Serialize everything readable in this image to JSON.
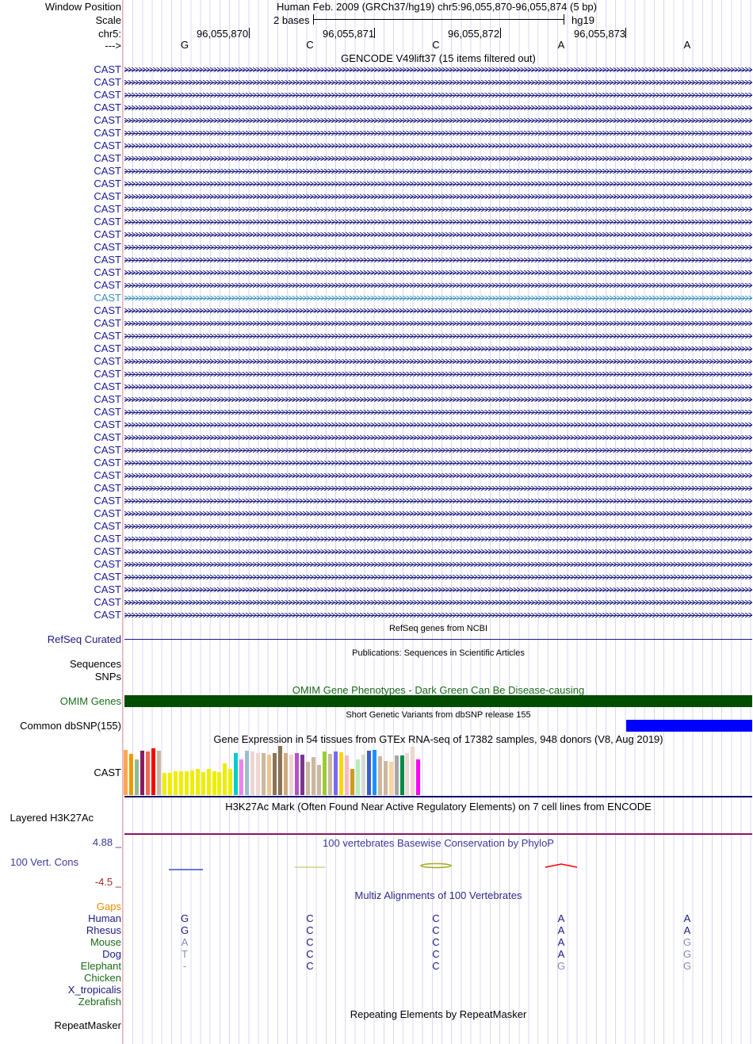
{
  "header": {
    "window_position_label": "Window Position",
    "window_position": "Human Feb. 2009 (GRCh37/hg19)   chr5:96,055,870-96,055,874 (5 bp)",
    "scale_label": "Scale",
    "scale_value": "2 bases",
    "scale_assembly": "hg19",
    "chrom_label": "chr5:",
    "coords": [
      "96,055,870",
      "96,055,871",
      "96,055,872",
      "96,055,873"
    ],
    "strand_label": "--->",
    "bases": [
      "G",
      "C",
      "C",
      "A",
      "A"
    ]
  },
  "gencode": {
    "title": "GENCODE V49lift37 (15 items filtered out)",
    "rows": [
      {
        "label": "CAST"
      },
      {
        "label": "CAST"
      },
      {
        "label": "CAST"
      },
      {
        "label": "CAST"
      },
      {
        "label": "CAST"
      },
      {
        "label": "CAST"
      },
      {
        "label": "CAST"
      },
      {
        "label": "CAST"
      },
      {
        "label": "CAST"
      },
      {
        "label": "CAST"
      },
      {
        "label": "CAST"
      },
      {
        "label": "CAST"
      },
      {
        "label": "CAST"
      },
      {
        "label": "CAST"
      },
      {
        "label": "CAST"
      },
      {
        "label": "CAST"
      },
      {
        "label": "CAST"
      },
      {
        "label": "CAST"
      },
      {
        "label": "CAST",
        "highlight": true
      },
      {
        "label": "CAST"
      },
      {
        "label": "CAST"
      },
      {
        "label": "CAST"
      },
      {
        "label": "CAST"
      },
      {
        "label": "CAST"
      },
      {
        "label": "CAST"
      },
      {
        "label": "CAST"
      },
      {
        "label": "CAST"
      },
      {
        "label": "CAST"
      },
      {
        "label": "CAST"
      },
      {
        "label": "CAST"
      },
      {
        "label": "CAST"
      },
      {
        "label": "CAST"
      },
      {
        "label": "CAST"
      },
      {
        "label": "CAST"
      },
      {
        "label": "CAST"
      },
      {
        "label": "CAST"
      },
      {
        "label": "CAST"
      },
      {
        "label": "CAST"
      },
      {
        "label": "CAST"
      },
      {
        "label": "CAST"
      },
      {
        "label": "CAST"
      },
      {
        "label": "CAST"
      },
      {
        "label": "CAST"
      },
      {
        "label": "CAST"
      }
    ]
  },
  "refseq": {
    "title": "RefSeq genes from NCBI",
    "label": "RefSeq Curated"
  },
  "publications": {
    "title": "Publications: Sequences in Scientific Articles",
    "label_1": "Sequences",
    "label_2": "SNPs"
  },
  "omim": {
    "title": "OMIM Gene Phenotypes - Dark Green Can Be Disease-causing",
    "label": "OMIM Genes",
    "color": "#004d00"
  },
  "dbsnp": {
    "title": "Short Genetic Variants from dbSNP release 155",
    "label": "Common dbSNP(155)",
    "color": "#0000ff"
  },
  "gtex": {
    "title": "Gene Expression in 54 tissues from GTEx RNA-seq of 17382 samples, 948 donors (V8, Aug 2019)",
    "label": "CAST",
    "relative_values": [
      0.92,
      0.84,
      0.73,
      0.91,
      0.89,
      0.95,
      0.91,
      0.45,
      0.45,
      0.49,
      0.49,
      0.48,
      0.5,
      0.54,
      0.47,
      0.54,
      0.48,
      0.47,
      0.65,
      0.54,
      0.86,
      0.73,
      0.91,
      0.89,
      0.86,
      0.86,
      0.83,
      0.86,
      1.0,
      0.86,
      0.83,
      0.86,
      0.83,
      0.67,
      0.77,
      0.61,
      0.89,
      0.84,
      0.89,
      0.87,
      0.81,
      0.53,
      0.73,
      0.83,
      0.91,
      0.92,
      0.79,
      0.7,
      0.68,
      0.81,
      0.81,
      0.86,
      0.98,
      0.72
    ],
    "colors": [
      "#ffa54f",
      "#ee9a00",
      "#8fbc8f",
      "#8b1c62",
      "#ee6a50",
      "#ff0000",
      "#cdb79e",
      "#eeee00",
      "#eeee00",
      "#eeee00",
      "#eeee00",
      "#eeee00",
      "#eeee00",
      "#eeee00",
      "#eeee00",
      "#eeee00",
      "#eeee00",
      "#eeee00",
      "#eeee00",
      "#eeee00",
      "#00cdcd",
      "#ee82ee",
      "#9ac0cd",
      "#eed5d2",
      "#eed5d2",
      "#cdb79e",
      "#eec591",
      "#8b7355",
      "#8b7355",
      "#cdaa7d",
      "#eed5d2",
      "#b452cd",
      "#7a378b",
      "#cdb79e",
      "#cdb79e",
      "#cdb79e",
      "#9acd32",
      "#cdb79e",
      "#7b68ee",
      "#ffd700",
      "#ffb6c1",
      "#cd9b1d",
      "#b4eeb4",
      "#d9d9d9",
      "#3a5fcd",
      "#1e90ff",
      "#cdb79e",
      "#cdb79e",
      "#ffd39b",
      "#a6a6a6",
      "#008b45",
      "#eed5d2",
      "#eed5d2",
      "#ff00ff"
    ]
  },
  "h3k27ac": {
    "title": "H3K27Ac Mark (Often Found Near Active Regulatory Elements) on 7 cell lines from ENCODE",
    "label": "Layered H3K27Ac"
  },
  "phylop": {
    "title": "100 vertebrates Basewise Conservation by PhyloP",
    "label": "100 Vert. Cons",
    "max": "4.88 _",
    "min": "-4.5 _"
  },
  "multiz": {
    "title": "Multiz Alignments of 100 Vertebrates",
    "gaps_label": "Gaps",
    "species": [
      {
        "name": "Human",
        "color": "navy",
        "bases": [
          "G",
          "C",
          "C",
          "A",
          "A"
        ],
        "match": [
          1,
          1,
          1,
          1,
          1
        ]
      },
      {
        "name": "Rhesus",
        "color": "navy",
        "bases": [
          "G",
          "C",
          "C",
          "A",
          "A"
        ],
        "match": [
          1,
          1,
          1,
          1,
          1
        ]
      },
      {
        "name": "Mouse",
        "color": "green",
        "bases": [
          "A",
          "C",
          "C",
          "A",
          "G"
        ],
        "match": [
          0,
          1,
          1,
          1,
          0
        ]
      },
      {
        "name": "Dog",
        "color": "navy",
        "bases": [
          "T",
          "C",
          "C",
          "A",
          "G"
        ],
        "match": [
          0,
          1,
          1,
          1,
          0
        ]
      },
      {
        "name": "Elephant",
        "color": "green",
        "bases": [
          "-",
          "C",
          "C",
          "G",
          "G"
        ],
        "match": [
          0,
          1,
          1,
          0,
          0
        ]
      },
      {
        "name": "Chicken",
        "color": "green",
        "bases": [],
        "match": []
      },
      {
        "name": "X_tropicalis",
        "color": "navy",
        "bases": [],
        "match": []
      },
      {
        "name": "Zebrafish",
        "color": "green",
        "bases": [],
        "match": []
      }
    ]
  },
  "repeatmasker": {
    "title": "Repeating Elements by RepeatMasker",
    "label": "RepeatMasker"
  }
}
